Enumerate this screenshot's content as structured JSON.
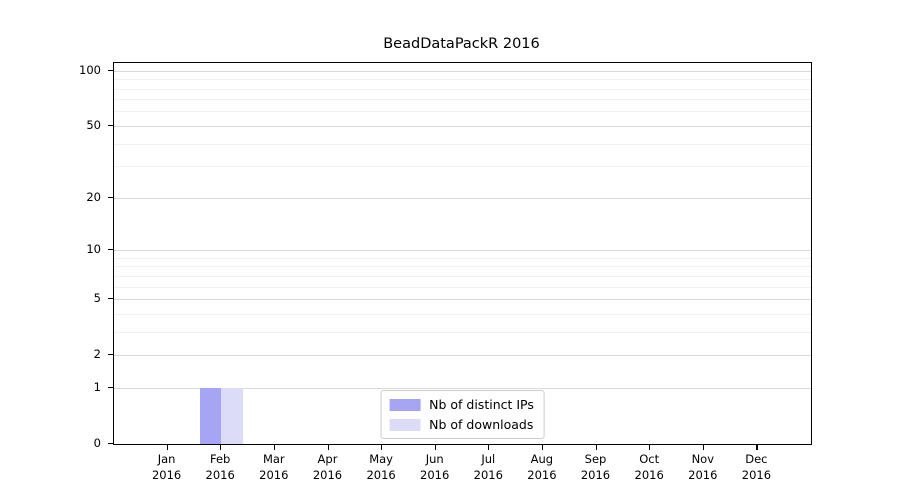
{
  "chart_data": {
    "type": "bar",
    "title": "BeadDataPackR 2016",
    "categories": [
      "Jan\n2016",
      "Feb\n2016",
      "Mar\n2016",
      "Apr\n2016",
      "May\n2016",
      "Jun\n2016",
      "Jul\n2016",
      "Aug\n2016",
      "Sep\n2016",
      "Oct\n2016",
      "Nov\n2016",
      "Dec\n2016"
    ],
    "series": [
      {
        "name": "Nb of distinct IPs",
        "color": "#a5a5f3",
        "values": [
          0,
          1,
          0,
          0,
          0,
          0,
          0,
          0,
          0,
          0,
          0,
          0
        ]
      },
      {
        "name": "Nb of downloads",
        "color": "#dcdcf9",
        "values": [
          0,
          1,
          0,
          0,
          0,
          0,
          0,
          0,
          0,
          0,
          0,
          0
        ]
      }
    ],
    "xlabel": "",
    "ylabel": "",
    "yscale": "log1p",
    "yticks": [
      0,
      1,
      2,
      5,
      10,
      20,
      50,
      100
    ],
    "minor_gridlines": [
      3,
      4,
      6,
      7,
      8,
      9,
      30,
      40,
      60,
      70,
      80,
      90
    ],
    "ylim": [
      0,
      110
    ],
    "grid": true,
    "legend_position": "lower center"
  },
  "colors": {
    "axis": "#000000",
    "major_grid": "#d9d9d9",
    "minor_grid": "#f0f0f0",
    "legend_border": "#cccccc",
    "background": "#ffffff"
  }
}
